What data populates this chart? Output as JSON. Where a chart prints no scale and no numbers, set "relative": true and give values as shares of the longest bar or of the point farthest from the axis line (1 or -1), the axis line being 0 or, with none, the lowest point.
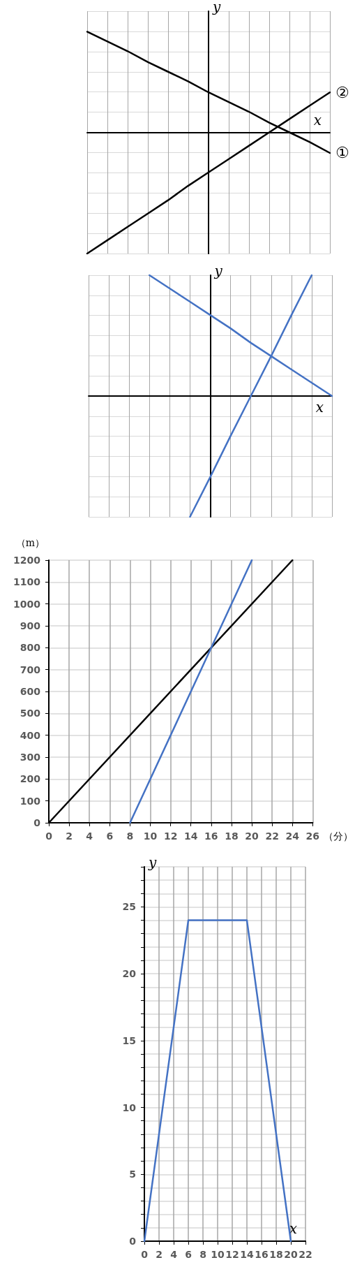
{
  "chart_data": [
    {
      "type": "line",
      "relative": true,
      "xlabel": "x",
      "ylabel": "y",
      "tick_labels": false,
      "grid": true,
      "marker": "none",
      "categories": [
        null,
        null,
        null,
        null,
        null,
        null,
        null,
        null,
        null,
        null,
        null,
        null,
        null
      ],
      "series": [
        {
          "name": "①",
          "color": "#000000",
          "values": [
            0.83,
            0.75,
            0.67,
            0.58,
            0.5,
            0.42,
            0.33,
            0.25,
            0.17,
            0.08,
            0,
            -0.08,
            -0.17
          ]
        },
        {
          "name": "②",
          "color": "#000000",
          "values": [
            -1,
            -0.89,
            -0.78,
            -0.67,
            -0.56,
            -0.44,
            -0.33,
            -0.22,
            -0.11,
            0,
            0.11,
            0.22,
            0.33
          ]
        }
      ]
    },
    {
      "type": "line",
      "relative": true,
      "xlabel": "x",
      "ylabel": "y",
      "tick_labels": false,
      "grid": true,
      "marker": "none",
      "categories": [
        null,
        null,
        null,
        null,
        null,
        null,
        null,
        null,
        null,
        null,
        null,
        null,
        null
      ],
      "series": [
        {
          "color": "#4472c4",
          "values": [
            null,
            null,
            null,
            1,
            0.89,
            0.78,
            0.67,
            0.56,
            0.44,
            0.33,
            0.22,
            0.11,
            0
          ]
        },
        {
          "color": "#4472c4",
          "values": [
            null,
            null,
            null,
            null,
            null,
            -1,
            -0.67,
            -0.33,
            0,
            0.33,
            0.67,
            1,
            null
          ]
        }
      ]
    },
    {
      "type": "line",
      "xlabel": "（分）",
      "ylabel": "（m）",
      "grid": true,
      "marker": "none",
      "xlim": [
        0,
        26
      ],
      "xticks": [
        0,
        2,
        4,
        6,
        8,
        10,
        12,
        14,
        16,
        18,
        20,
        22,
        24,
        26
      ],
      "ylim": [
        0,
        1200
      ],
      "yticks": [
        0,
        100,
        200,
        300,
        400,
        500,
        600,
        700,
        800,
        900,
        1000,
        1100,
        1200
      ],
      "series": [
        {
          "color": "#000000",
          "x": [
            0,
            24
          ],
          "values": [
            0,
            1200
          ]
        },
        {
          "color": "#4472c4",
          "x": [
            8,
            20
          ],
          "values": [
            0,
            1200
          ]
        }
      ]
    },
    {
      "type": "line",
      "xlabel": "x",
      "ylabel": "y",
      "grid": true,
      "marker": "none",
      "xlim": [
        0,
        22
      ],
      "xticks": [
        0,
        2,
        4,
        6,
        8,
        10,
        12,
        14,
        16,
        18,
        20,
        22
      ],
      "ylim": [
        0,
        28
      ],
      "yticks": [
        0,
        {
          "value": 1,
          "label": null
        },
        {
          "value": 2,
          "label": null
        },
        {
          "value": 3,
          "label": null
        },
        {
          "value": 4,
          "label": null
        },
        5,
        {
          "value": 6,
          "label": null
        },
        {
          "value": 7,
          "label": null
        },
        {
          "value": 8,
          "label": null
        },
        {
          "value": 9,
          "label": null
        },
        10,
        {
          "value": 11,
          "label": null
        },
        {
          "value": 12,
          "label": null
        },
        {
          "value": 13,
          "label": null
        },
        {
          "value": 14,
          "label": null
        },
        15,
        {
          "value": 16,
          "label": null
        },
        {
          "value": 17,
          "label": null
        },
        {
          "value": 18,
          "label": null
        },
        {
          "value": 19,
          "label": null
        },
        20,
        {
          "value": 21,
          "label": null
        },
        {
          "value": 22,
          "label": null
        },
        {
          "value": 23,
          "label": null
        },
        {
          "value": 24,
          "label": null
        },
        25,
        {
          "value": 26,
          "label": null
        },
        {
          "value": 27,
          "label": null
        },
        {
          "value": 28,
          "label": null
        }
      ],
      "series": [
        {
          "color": "#4472c4",
          "x": [
            0,
            6,
            14,
            20
          ],
          "values": [
            0,
            24,
            24,
            0
          ]
        }
      ]
    }
  ]
}
